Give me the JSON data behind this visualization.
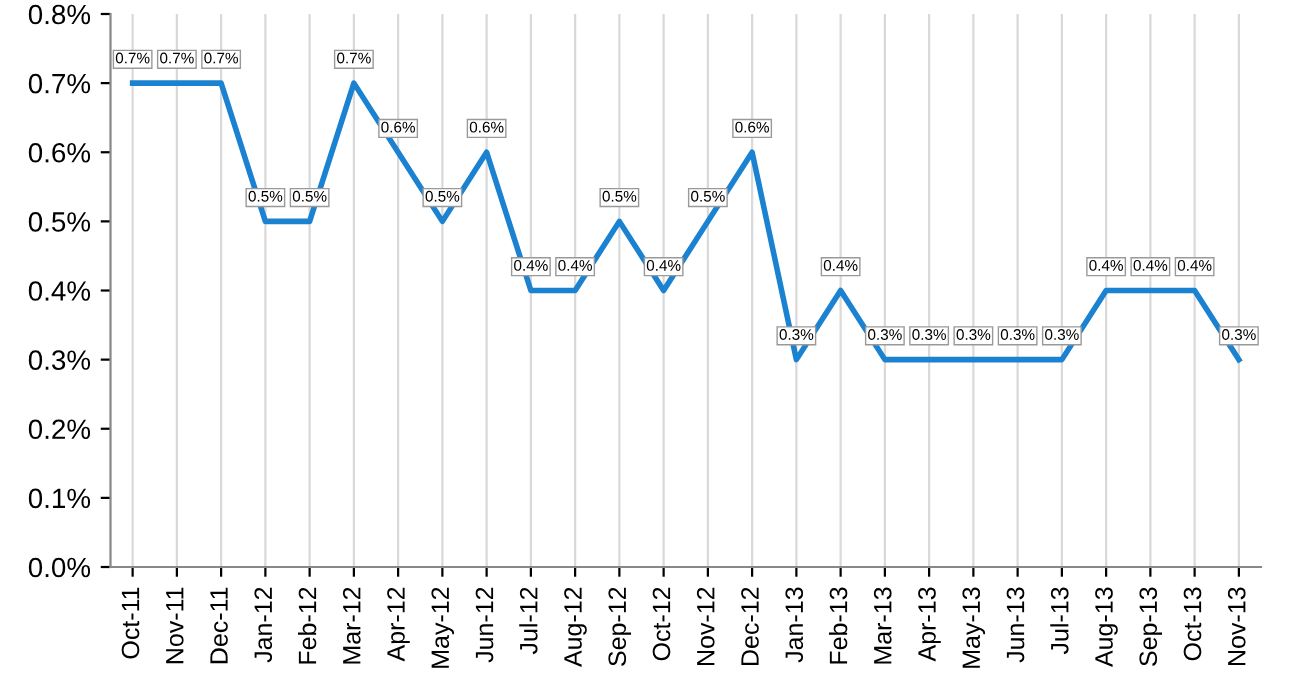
{
  "chart_data": {
    "type": "line",
    "categories": [
      "Oct-11",
      "Nov-11",
      "Dec-11",
      "Jan-12",
      "Feb-12",
      "Mar-12",
      "Apr-12",
      "May-12",
      "Jun-12",
      "Jul-12",
      "Aug-12",
      "Sep-12",
      "Oct-12",
      "Nov-12",
      "Dec-12",
      "Jan-13",
      "Feb-13",
      "Mar-13",
      "Apr-13",
      "May-13",
      "Jun-13",
      "Jul-13",
      "Aug-13",
      "Sep-13",
      "Oct-13",
      "Nov-13"
    ],
    "series": [
      {
        "color": "#1a82d0",
        "values": [
          0.7,
          0.7,
          0.7,
          0.5,
          0.5,
          0.7,
          0.6,
          0.5,
          0.6,
          0.4,
          0.4,
          0.5,
          0.4,
          0.5,
          0.6,
          0.3,
          0.4,
          0.3,
          0.3,
          0.3,
          0.3,
          0.3,
          0.4,
          0.4,
          0.4,
          0.3
        ],
        "value_labels": [
          "0.7%",
          "0.7%",
          "0.7%",
          "0.5%",
          "0.5%",
          "0.7%",
          "0.6%",
          "0.5%",
          "0.6%",
          "0.4%",
          "0.4%",
          "0.5%",
          "0.4%",
          "0.5%",
          "0.6%",
          "0.3%",
          "0.4%",
          "0.3%",
          "0.3%",
          "0.3%",
          "0.3%",
          "0.3%",
          "0.4%",
          "0.4%",
          "0.4%",
          "0.3%"
        ]
      }
    ],
    "ylim": [
      0,
      0.8
    ],
    "yticks": [
      {
        "value": 0,
        "label": "0.0%"
      },
      {
        "value": 0.1,
        "label": "0.1%"
      },
      {
        "value": 0.2,
        "label": "0.2%"
      },
      {
        "value": 0.3,
        "label": "0.3%"
      },
      {
        "value": 0.4,
        "label": "0.4%"
      },
      {
        "value": 0.5,
        "label": "0.5%"
      },
      {
        "value": 0.6,
        "label": "0.6%"
      },
      {
        "value": 0.7,
        "label": "0.7%"
      },
      {
        "value": 0.8,
        "label": "0.8%"
      }
    ],
    "grid": "x",
    "marker": "none",
    "line_style": "solid",
    "legend": false
  }
}
